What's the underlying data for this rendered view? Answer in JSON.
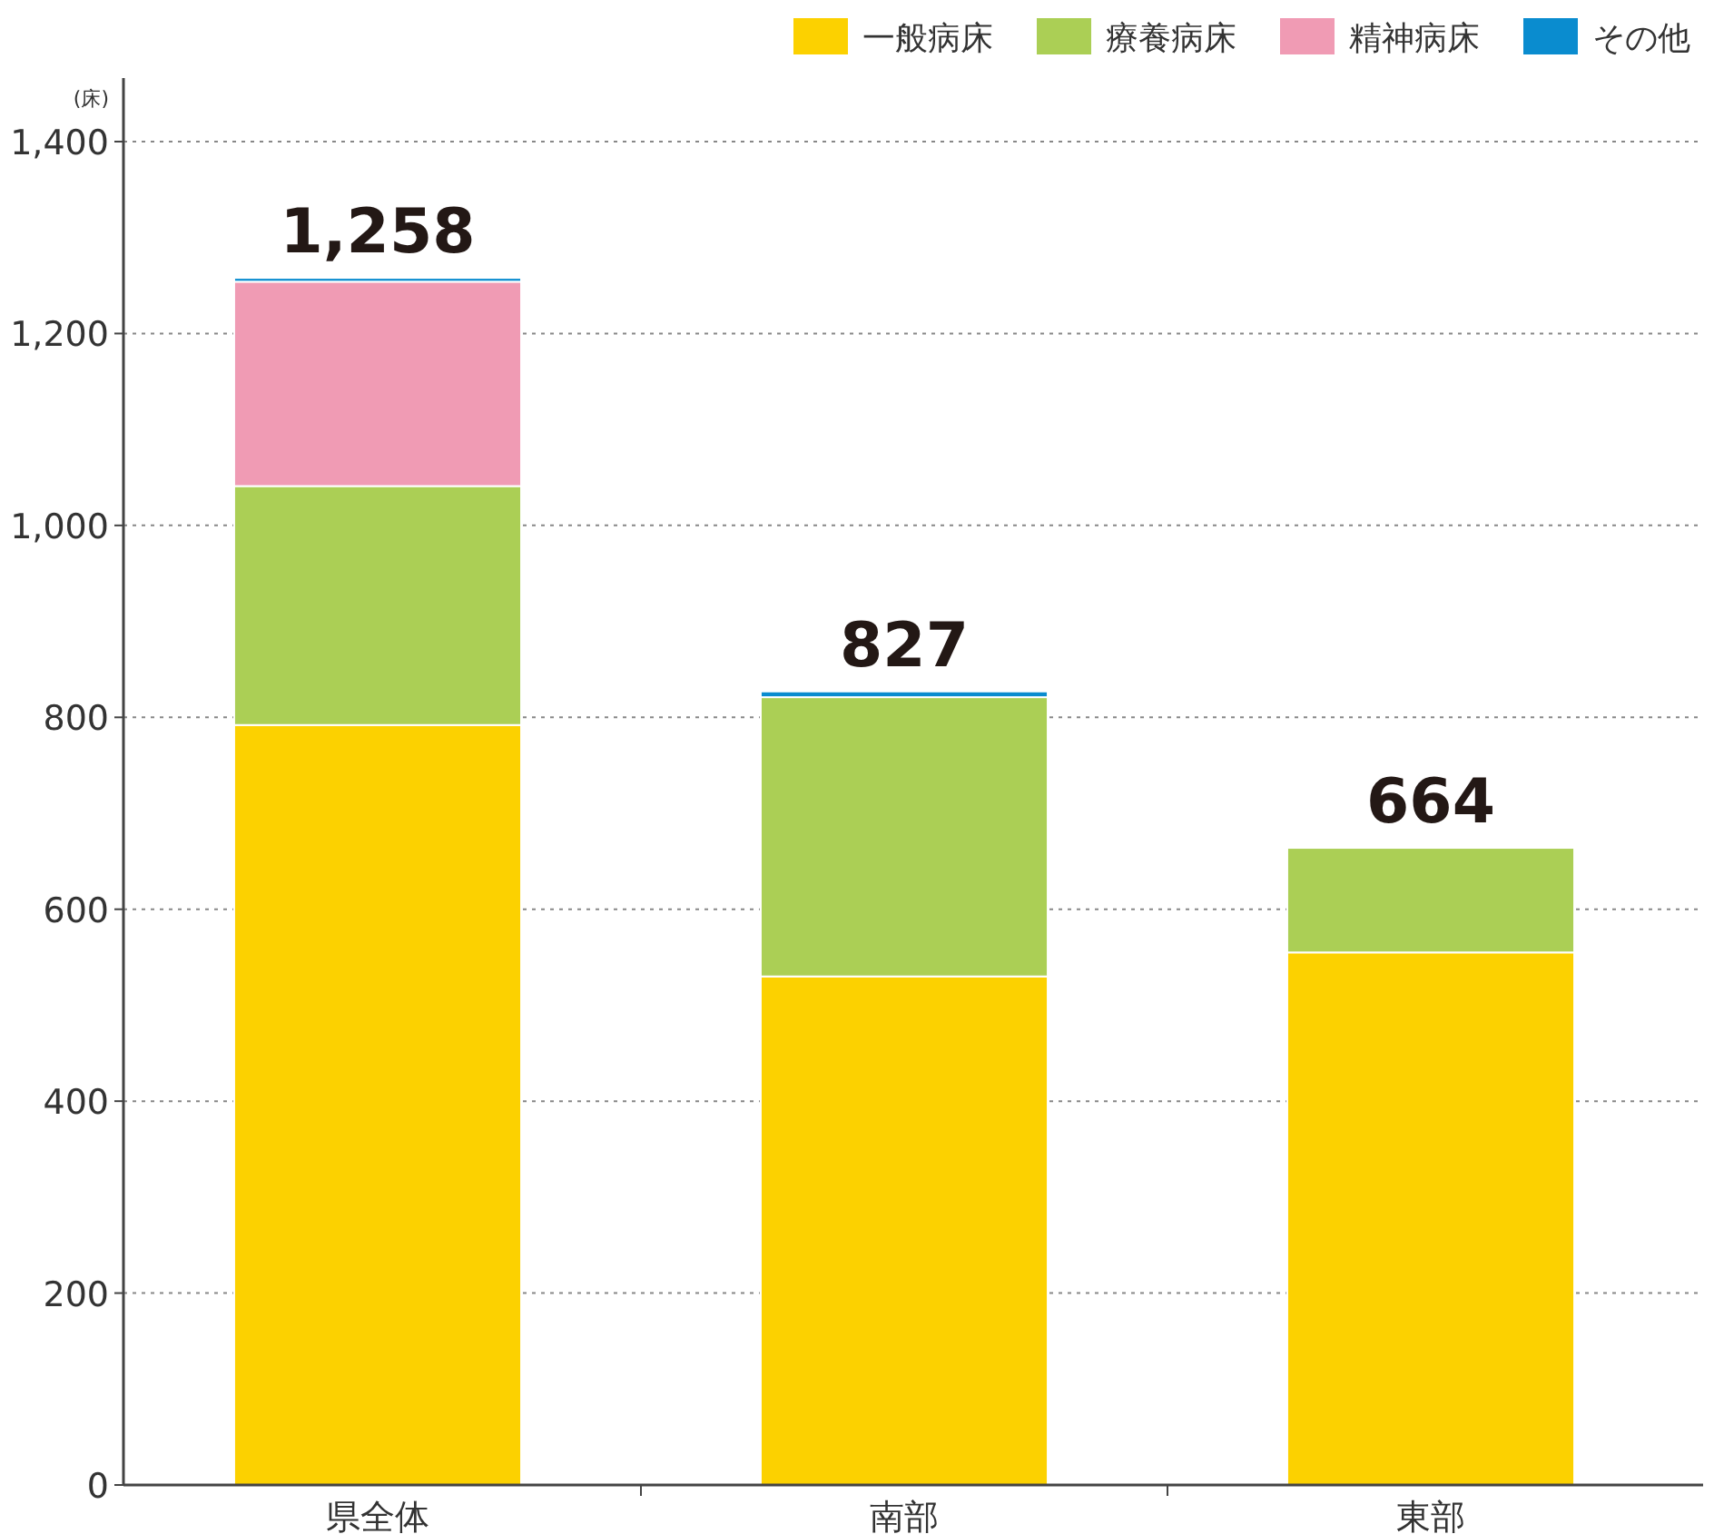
{
  "chart_data": {
    "type": "bar",
    "stacked": true,
    "ylabel": "(床)",
    "categories": [
      "県全体",
      "南部",
      "東部"
    ],
    "series": [
      {
        "name": "一般病床",
        "color": "#fcd100",
        "values": [
          792,
          530,
          555
        ]
      },
      {
        "name": "療養病床",
        "color": "#abcf55",
        "values": [
          249,
          291,
          109
        ]
      },
      {
        "name": "精神病床",
        "color": "#f09bb4",
        "values": [
          213,
          null,
          null
        ]
      },
      {
        "name": "その他",
        "color": "#0a8ccf",
        "values": [
          4,
          6,
          null
        ]
      }
    ],
    "totals": [
      "1,258",
      "827",
      "664"
    ],
    "ylim": [
      0,
      1400
    ],
    "yticks": [
      0,
      200,
      400,
      600,
      800,
      {
        "value": 1000,
        "label": "1,000"
      },
      {
        "value": 1200,
        "label": "1,200"
      },
      {
        "value": 1400,
        "label": "1,400"
      }
    ],
    "grid": "y",
    "legend": "top right"
  }
}
